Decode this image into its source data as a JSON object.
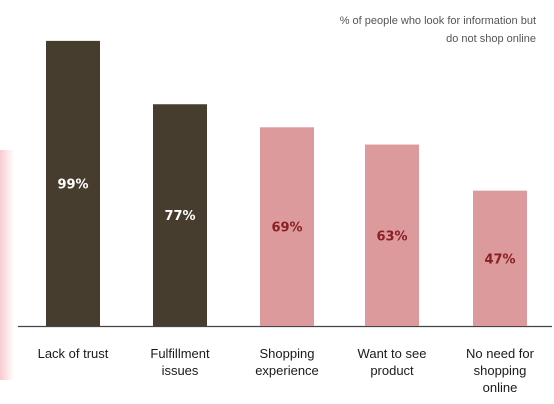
{
  "note": "% of people who look for information but\ndo not shop online",
  "colors": {
    "dark": "#463d2f",
    "pink": "#dc9a9c",
    "value_on_dark": "#ffffff",
    "value_on_pink": "#8a1f24",
    "axis": "#444444"
  },
  "chart_data": {
    "type": "bar",
    "title": "",
    "xlabel": "",
    "ylabel": "",
    "ylim": [
      0,
      100
    ],
    "grid": false,
    "legend": "none",
    "categories": [
      "Lack of trust",
      "Fulfillment issues",
      "Shopping experience",
      "Want to see product",
      "No need for shopping online"
    ],
    "category_lines": [
      [
        "Lack of trust"
      ],
      [
        "Fulfillment",
        "issues"
      ],
      [
        "Shopping",
        "experience"
      ],
      [
        "Want to see",
        "product"
      ],
      [
        "No need for",
        "shopping",
        "online"
      ]
    ],
    "values": [
      99,
      77,
      69,
      63,
      47
    ],
    "value_labels": [
      "99%",
      "77%",
      "69%",
      "63%",
      "47%"
    ],
    "bar_color_keys": [
      "dark",
      "dark",
      "pink",
      "pink",
      "pink"
    ]
  }
}
